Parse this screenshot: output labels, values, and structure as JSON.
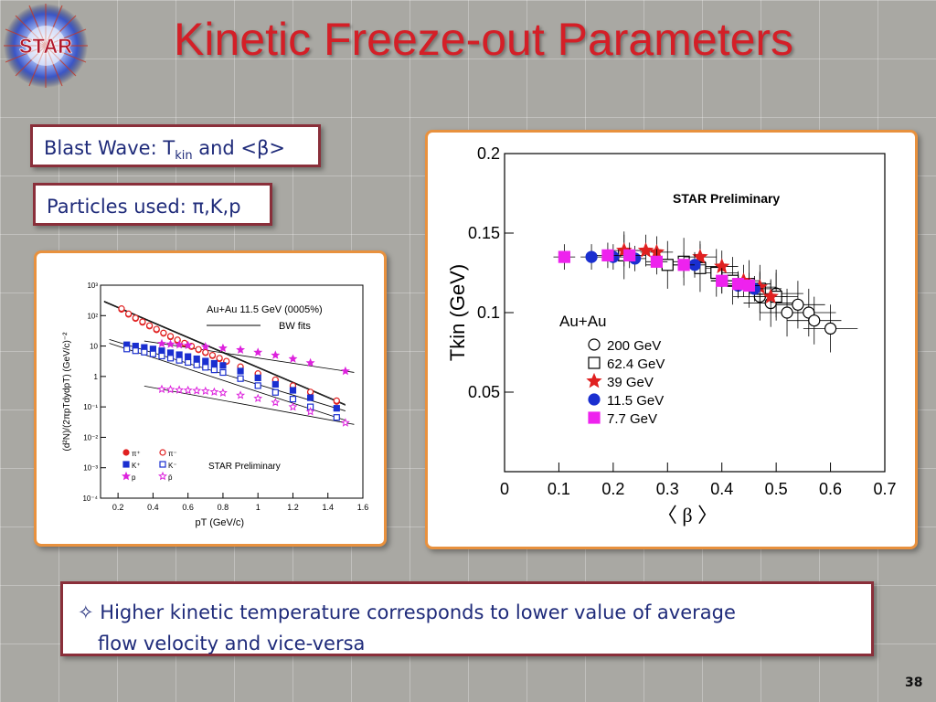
{
  "slide": {
    "logo_text": "STAR",
    "title": "Kinetic Freeze-out Parameters",
    "box1": {
      "prefix": "Blast Wave: T",
      "subscript": "kin",
      "suffix": " and <β>"
    },
    "box2": {
      "text": "Particles used: π,K,p"
    },
    "note": {
      "bullet": "✧",
      "line1": "Higher kinetic temperature corresponds to lower value of average",
      "line2": "flow velocity and vice-versa"
    },
    "page_number": "38"
  },
  "chart_data": [
    {
      "type": "scatter",
      "title": "",
      "xlabel": "pT (GeV/c)",
      "ylabel": "(d²N)/(2πpTdydpT) (GeV/c)⁻²",
      "yscale": "log",
      "xlim": [
        0.1,
        1.6
      ],
      "ylim": [
        0.0001,
        1000
      ],
      "x_ticks": [
        "0.2",
        "0.4",
        "0.6",
        "0.8",
        "1",
        "1.2",
        "1.4",
        "1.6"
      ],
      "y_ticks": [
        "10⁻⁴",
        "10⁻³",
        "10⁻²",
        "10⁻¹",
        "1",
        "10",
        "10²",
        "10³"
      ],
      "annotations": [
        "Au+Au 11.5 GeV (0005%)",
        "BW fits",
        "STAR Preliminary"
      ],
      "legend": [
        "π⁺",
        "π⁻",
        "K⁺",
        "K⁻",
        "p",
        "p̄"
      ],
      "legend_placement": "bottom-left",
      "series": [
        {
          "name": "π⁺",
          "color": "#e02020",
          "marker": "filled-circle",
          "x": [
            0.22,
            0.26,
            0.3,
            0.34,
            0.38,
            0.42,
            0.46,
            0.5,
            0.54,
            0.58,
            0.62,
            0.66,
            0.7,
            0.74,
            0.78,
            0.82,
            0.9,
            1.0,
            1.1,
            1.2,
            1.3,
            1.45
          ],
          "y": [
            160,
            110,
            80,
            60,
            45,
            34,
            26,
            20,
            15,
            12,
            9.5,
            7.5,
            6,
            4.8,
            3.8,
            3.1,
            2.0,
            1.2,
            0.75,
            0.48,
            0.3,
            0.15
          ]
        },
        {
          "name": "π⁻",
          "color": "#e02020",
          "marker": "open-circle",
          "x": [
            0.22,
            0.26,
            0.3,
            0.34,
            0.38,
            0.42,
            0.46,
            0.5,
            0.54,
            0.58,
            0.62,
            0.66,
            0.7,
            0.74,
            0.78,
            0.82,
            0.9,
            1.0,
            1.1,
            1.2,
            1.3,
            1.45
          ],
          "y": [
            170,
            115,
            84,
            63,
            47,
            36,
            27,
            21,
            16,
            12.5,
            10,
            7.8,
            6.2,
            5.0,
            4.0,
            3.2,
            2.1,
            1.25,
            0.78,
            0.5,
            0.31,
            0.16
          ]
        },
        {
          "name": "K⁺",
          "color": "#1a2fd0",
          "marker": "filled-square",
          "x": [
            0.25,
            0.3,
            0.35,
            0.4,
            0.45,
            0.5,
            0.55,
            0.6,
            0.65,
            0.7,
            0.75,
            0.8,
            0.9,
            1.0,
            1.1,
            1.2,
            1.3,
            1.45
          ],
          "y": [
            11,
            10,
            9,
            8,
            7,
            6,
            5.2,
            4.5,
            3.8,
            3.2,
            2.7,
            2.3,
            1.5,
            0.9,
            0.55,
            0.35,
            0.2,
            0.09
          ]
        },
        {
          "name": "K⁻",
          "color": "#1a2fd0",
          "marker": "open-square",
          "x": [
            0.25,
            0.3,
            0.35,
            0.4,
            0.45,
            0.5,
            0.55,
            0.6,
            0.65,
            0.7,
            0.75,
            0.8,
            0.9,
            1.0,
            1.1,
            1.2,
            1.3,
            1.45
          ],
          "y": [
            8,
            7,
            6.3,
            5.5,
            4.7,
            4,
            3.4,
            2.9,
            2.4,
            2,
            1.65,
            1.35,
            0.85,
            0.5,
            0.3,
            0.18,
            0.1,
            0.045
          ]
        },
        {
          "name": "p",
          "color": "#dd22dd",
          "marker": "filled-star",
          "x": [
            0.45,
            0.5,
            0.55,
            0.6,
            0.7,
            0.8,
            0.9,
            1.0,
            1.1,
            1.2,
            1.3,
            1.5
          ],
          "y": [
            12,
            11.5,
            11,
            10.5,
            9.5,
            8.5,
            7.5,
            6.2,
            5,
            3.8,
            2.8,
            1.5
          ]
        },
        {
          "name": "p̄",
          "color": "#dd22dd",
          "marker": "open-star",
          "x": [
            0.45,
            0.5,
            0.55,
            0.6,
            0.65,
            0.7,
            0.75,
            0.8,
            0.9,
            1.0,
            1.1,
            1.2,
            1.3,
            1.5
          ],
          "y": [
            0.38,
            0.37,
            0.36,
            0.35,
            0.34,
            0.33,
            0.31,
            0.29,
            0.24,
            0.19,
            0.14,
            0.1,
            0.07,
            0.03
          ]
        }
      ]
    },
    {
      "type": "scatter",
      "title": "",
      "xlabel": "〈 β 〉",
      "ylabel": "Tkin (GeV)",
      "xlim": [
        0,
        0.7
      ],
      "ylim": [
        0,
        0.2
      ],
      "x_ticks": [
        "0",
        "0.1",
        "0.2",
        "0.3",
        "0.4",
        "0.5",
        "0.6",
        "0.7"
      ],
      "y_ticks": [
        "0.05",
        "0.1",
        "0.15",
        "0.2"
      ],
      "annotations": [
        "STAR Preliminary",
        "Au+Au"
      ],
      "legend_placement": "center-left",
      "series": [
        {
          "name": "200 GeV",
          "color": "#000000",
          "marker": "open-circle",
          "x": [
            0.47,
            0.49,
            0.5,
            0.52,
            0.54,
            0.56,
            0.57,
            0.6
          ],
          "y": [
            0.11,
            0.106,
            0.112,
            0.1,
            0.105,
            0.1,
            0.095,
            0.09
          ],
          "xerr": 0.05,
          "yerr": 0.015
        },
        {
          "name": "62.4 GeV",
          "color": "#000000",
          "marker": "open-square",
          "x": [
            0.22,
            0.3,
            0.33,
            0.36,
            0.39,
            0.42,
            0.45,
            0.47,
            0.5
          ],
          "y": [
            0.136,
            0.13,
            0.132,
            0.128,
            0.125,
            0.12,
            0.118,
            0.115,
            0.11
          ],
          "xerr": 0.04,
          "yerr": 0.015
        },
        {
          "name": "39 GeV",
          "color": "#e02020",
          "marker": "filled-star",
          "x": [
            0.22,
            0.26,
            0.28,
            0.36,
            0.4,
            0.44,
            0.47,
            0.49
          ],
          "y": [
            0.139,
            0.139,
            0.138,
            0.135,
            0.129,
            0.12,
            0.116,
            0.11
          ],
          "xerr": 0.03,
          "yerr": 0.01
        },
        {
          "name": "11.5 GeV",
          "color": "#1a2fd0",
          "marker": "filled-circle",
          "x": [
            0.16,
            0.2,
            0.24,
            0.35,
            0.4,
            0.43,
            0.46
          ],
          "y": [
            0.135,
            0.135,
            0.134,
            0.13,
            0.12,
            0.117,
            0.115
          ],
          "xerr": 0.02,
          "yerr": 0.008
        },
        {
          "name": "7.7 GeV",
          "color": "#ee22ee",
          "marker": "filled-square",
          "x": [
            0.11,
            0.19,
            0.23,
            0.28,
            0.33,
            0.4,
            0.43,
            0.45
          ],
          "y": [
            0.135,
            0.136,
            0.136,
            0.132,
            0.13,
            0.12,
            0.118,
            0.117
          ],
          "xerr": 0.02,
          "yerr": 0.008
        }
      ]
    }
  ]
}
